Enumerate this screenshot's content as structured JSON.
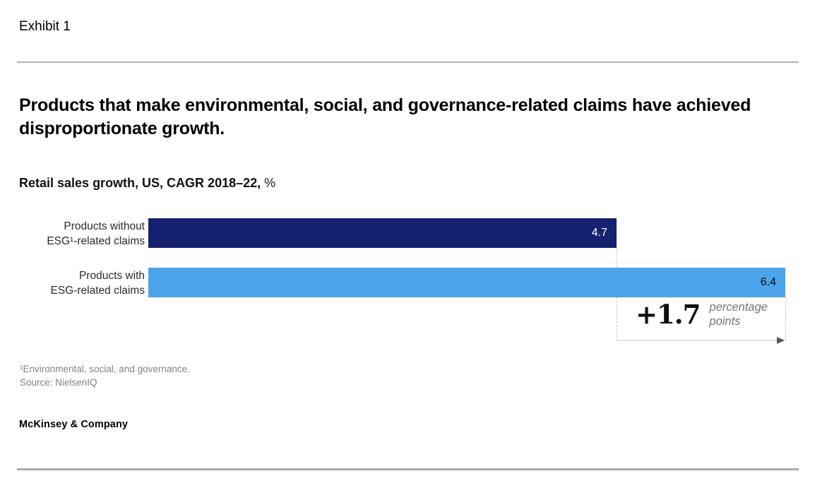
{
  "exhibit": {
    "label": "Exhibit 1"
  },
  "chart_data": {
    "type": "bar",
    "orientation": "horizontal",
    "title": "Products that make environmental, social, and governance-related claims have achieved disproportionate growth.",
    "subtitle_bold": "Retail sales growth, US, CAGR 2018–22,",
    "subtitle_unit": "%",
    "categories": [
      "Products without ESG¹-related claims",
      "Products with ESG-related claims"
    ],
    "category_lines": [
      [
        "Products without",
        "ESG¹-related claims"
      ],
      [
        "Products with",
        "ESG-related claims"
      ]
    ],
    "values": [
      4.7,
      6.4
    ],
    "value_labels": [
      "4.7",
      "6.4"
    ],
    "bar_colors": [
      "#15216e",
      "#4ba4ea"
    ],
    "value_label_colors": [
      "#ffffff",
      "#0a0a0a"
    ],
    "xlim": [
      0,
      6.4
    ],
    "grid": false,
    "legend": false,
    "annotation": {
      "delta_label": "+1.7",
      "unit_lines": [
        "percentage",
        "points"
      ]
    }
  },
  "footer": {
    "footnote": "¹Environmental, social, and governance.",
    "source": "Source: NielsenIQ",
    "brand": "McKinsey & Company"
  }
}
